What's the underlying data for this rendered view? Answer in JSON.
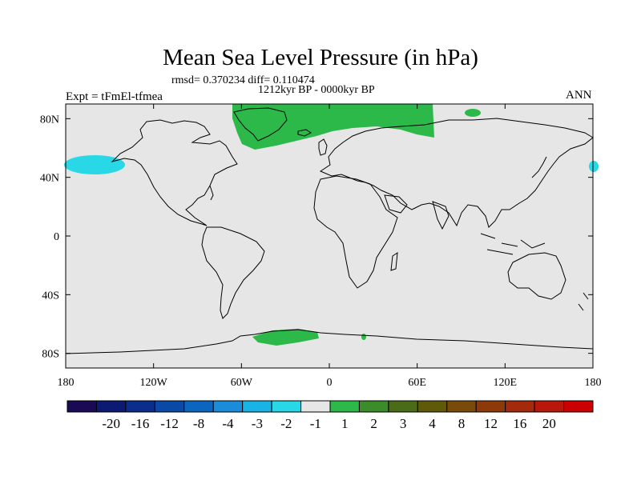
{
  "header": {
    "title": "Mean Sea Level Pressure (in hPa)",
    "stats": "rmsd= 0.370234 diff= 0.110474",
    "period": "1212kyr BP - 0000kyr BP",
    "experiment": "Expt = tFmEl-tfmea",
    "season": "ANN"
  },
  "map": {
    "projection": "cylindrical-equidistant",
    "lon_range": [
      -180,
      180
    ],
    "lat_range": [
      -90,
      90
    ],
    "background_color": "#e6e6e6",
    "y_ticks": [
      {
        "lat": 80,
        "label": "80N"
      },
      {
        "lat": 40,
        "label": "40N"
      },
      {
        "lat": 0,
        "label": "0"
      },
      {
        "lat": -40,
        "label": "40S"
      },
      {
        "lat": -80,
        "label": "80S"
      }
    ],
    "x_ticks": [
      {
        "lon": -180,
        "label": "180"
      },
      {
        "lon": -120,
        "label": "120W"
      },
      {
        "lon": -60,
        "label": "60W"
      },
      {
        "lon": 0,
        "label": "0"
      },
      {
        "lon": 60,
        "label": "60E"
      },
      {
        "lon": 120,
        "label": "120E"
      },
      {
        "lon": 180,
        "label": "180"
      }
    ],
    "anomaly_regions": [
      {
        "name": "north-pacific-negative",
        "range": "-2 to -1",
        "color": "#29d8e6"
      },
      {
        "name": "greenland-arctic-positive",
        "range": "1 to 2",
        "color": "#2db84a"
      },
      {
        "name": "weddell-sea-positive",
        "range": "1 to 2",
        "color": "#2db84a"
      }
    ]
  },
  "colorbar": {
    "colors": [
      "#1a0a55",
      "#0d1a73",
      "#0b2d8c",
      "#0a4aa6",
      "#0b66bf",
      "#1a8cd9",
      "#19b4e6",
      "#29d8e6",
      "#e6e6e6",
      "#2db84a",
      "#3d8c2a",
      "#4a6b18",
      "#5e5a0a",
      "#7a4a0a",
      "#8c3a0a",
      "#a32a0a",
      "#b8180a",
      "#cc0000"
    ],
    "labels": [
      "-20",
      "-16",
      "-12",
      "-8",
      "-4",
      "-3",
      "-2",
      "-1",
      "1",
      "2",
      "3",
      "4",
      "8",
      "12",
      "16",
      "20"
    ]
  }
}
